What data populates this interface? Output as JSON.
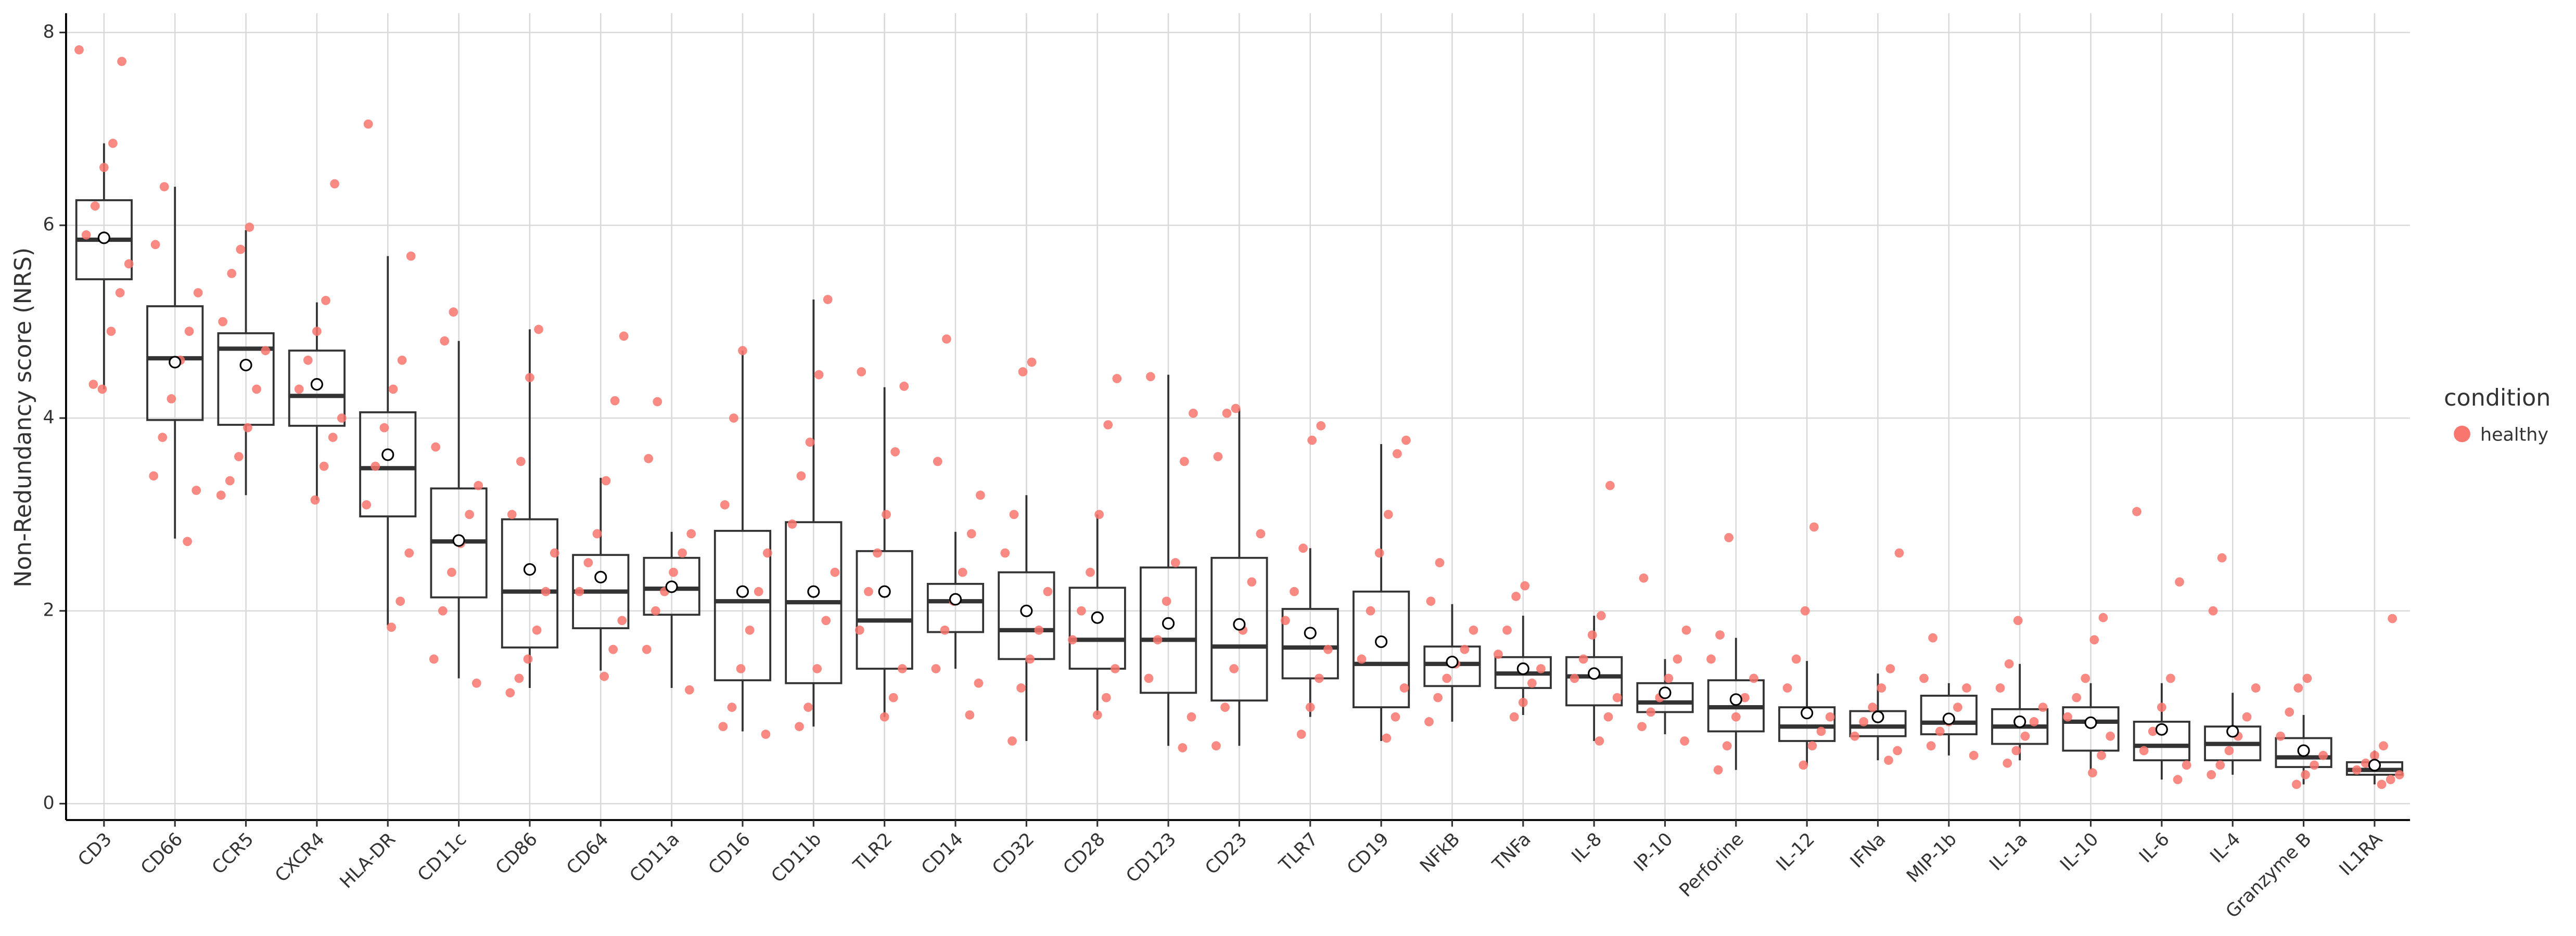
{
  "chart_data": {
    "type": "box",
    "y_label": "Non-Redundancy score (NRS)",
    "categories": [
      "CD3",
      "CD66",
      "CCR5",
      "CXCR4",
      "HLA-DR",
      "CD11c",
      "CD86",
      "CD64",
      "CD11a",
      "CD16",
      "CD11b",
      "TLR2",
      "CD14",
      "CD32",
      "CD28",
      "CD123",
      "CD23",
      "TLR7",
      "CD19",
      "NFkB",
      "TNFa",
      "IL-8",
      "IP-10",
      "Perforine",
      "IL-12",
      "IFNa",
      "MIP-1b",
      "IL-1a",
      "IL-10",
      "IL-6",
      "IL-4",
      "Granzyme B",
      "IL1RA"
    ],
    "series": [
      {
        "name": "healthy",
        "color": "#f8766d",
        "low": [
          4.3,
          2.75,
          3.2,
          3.15,
          1.85,
          1.3,
          1.2,
          1.38,
          1.2,
          0.75,
          0.8,
          0.9,
          1.4,
          0.65,
          0.92,
          0.6,
          0.6,
          0.9,
          0.65,
          0.85,
          0.92,
          0.65,
          0.72,
          0.35,
          0.4,
          0.45,
          0.5,
          0.45,
          0.35,
          0.25,
          0.3,
          0.2,
          0.2
        ],
        "q1": [
          5.44,
          3.98,
          3.93,
          3.92,
          2.98,
          2.14,
          1.62,
          1.82,
          1.96,
          1.28,
          1.25,
          1.4,
          1.78,
          1.5,
          1.4,
          1.15,
          1.07,
          1.3,
          1.0,
          1.22,
          1.2,
          1.02,
          0.95,
          0.75,
          0.65,
          0.7,
          0.72,
          0.62,
          0.55,
          0.45,
          0.45,
          0.38,
          0.3
        ],
        "median": [
          5.85,
          4.62,
          4.72,
          4.23,
          3.48,
          2.72,
          2.2,
          2.2,
          2.23,
          2.1,
          2.09,
          1.9,
          2.1,
          1.8,
          1.7,
          1.7,
          1.63,
          1.62,
          1.45,
          1.45,
          1.35,
          1.32,
          1.05,
          1.0,
          0.8,
          0.8,
          0.84,
          0.8,
          0.85,
          0.6,
          0.62,
          0.48,
          0.35
        ],
        "q3": [
          6.26,
          5.16,
          4.88,
          4.7,
          4.06,
          3.27,
          2.95,
          2.58,
          2.55,
          2.83,
          2.92,
          2.62,
          2.28,
          2.4,
          2.24,
          2.45,
          2.55,
          2.02,
          2.2,
          1.63,
          1.52,
          1.52,
          1.25,
          1.28,
          1.0,
          0.96,
          1.12,
          0.98,
          1.0,
          0.85,
          0.8,
          0.68,
          0.43
        ],
        "high": [
          6.85,
          6.4,
          5.95,
          5.2,
          5.68,
          4.8,
          4.92,
          3.38,
          2.82,
          4.7,
          5.23,
          4.32,
          2.82,
          3.2,
          3.0,
          4.45,
          4.1,
          2.65,
          3.73,
          2.07,
          1.95,
          1.95,
          1.5,
          1.72,
          1.48,
          1.35,
          1.25,
          1.45,
          1.25,
          1.25,
          1.15,
          0.92,
          0.55
        ],
        "mean": [
          5.87,
          4.58,
          4.55,
          4.35,
          3.62,
          2.73,
          2.43,
          2.35,
          2.25,
          2.2,
          2.2,
          2.2,
          2.12,
          2.0,
          1.93,
          1.87,
          1.86,
          1.77,
          1.68,
          1.47,
          1.4,
          1.35,
          1.15,
          1.08,
          0.94,
          0.9,
          0.88,
          0.85,
          0.84,
          0.77,
          0.75,
          0.55,
          0.4
        ],
        "points": [
          [
            7.82,
            7.7,
            6.85,
            6.6,
            6.2,
            5.9,
            5.6,
            5.3,
            4.9,
            4.3,
            4.35
          ],
          [
            6.4,
            5.8,
            5.3,
            4.9,
            4.6,
            4.2,
            3.8,
            3.4,
            3.25,
            2.72
          ],
          [
            5.98,
            5.75,
            5.5,
            5.0,
            4.7,
            4.3,
            3.9,
            3.6,
            3.35,
            3.2
          ],
          [
            6.43,
            5.22,
            4.9,
            4.6,
            4.3,
            4.0,
            3.8,
            3.5,
            3.15
          ],
          [
            7.05,
            5.68,
            4.6,
            4.3,
            3.9,
            3.5,
            3.1,
            2.6,
            2.1,
            1.83
          ],
          [
            5.1,
            4.8,
            3.7,
            3.3,
            3.0,
            2.7,
            2.4,
            2.0,
            1.5,
            1.25
          ],
          [
            4.92,
            4.42,
            3.55,
            3.0,
            2.6,
            2.2,
            1.8,
            1.5,
            1.3,
            1.15
          ],
          [
            4.85,
            4.18,
            3.35,
            2.8,
            2.5,
            2.2,
            1.9,
            1.6,
            1.32
          ],
          [
            4.17,
            3.58,
            2.8,
            2.6,
            2.4,
            2.2,
            2.0,
            1.6,
            1.18
          ],
          [
            4.7,
            4.0,
            3.1,
            2.6,
            2.2,
            1.8,
            1.4,
            1.0,
            0.8,
            0.72
          ],
          [
            5.23,
            4.45,
            3.75,
            3.4,
            2.9,
            2.4,
            1.9,
            1.4,
            1.0,
            0.8
          ],
          [
            4.48,
            4.33,
            3.65,
            3.0,
            2.6,
            2.2,
            1.8,
            1.4,
            1.1,
            0.9
          ],
          [
            4.82,
            3.55,
            3.2,
            2.8,
            2.4,
            2.1,
            1.8,
            1.4,
            1.25,
            0.92
          ],
          [
            4.58,
            4.48,
            3.0,
            2.6,
            2.2,
            1.8,
            1.5,
            1.2,
            0.65
          ],
          [
            4.41,
            3.93,
            3.0,
            2.4,
            2.0,
            1.7,
            1.4,
            1.1,
            0.92
          ],
          [
            4.43,
            4.05,
            3.55,
            2.5,
            2.1,
            1.7,
            1.3,
            0.9,
            0.58
          ],
          [
            4.1,
            4.05,
            3.6,
            2.8,
            2.3,
            1.8,
            1.4,
            1.0,
            0.6
          ],
          [
            3.92,
            3.77,
            2.65,
            2.2,
            1.9,
            1.6,
            1.3,
            1.0,
            0.72
          ],
          [
            3.77,
            3.63,
            3.0,
            2.6,
            2.0,
            1.5,
            1.2,
            0.9,
            0.68
          ],
          [
            2.5,
            2.1,
            1.8,
            1.6,
            1.45,
            1.3,
            1.1,
            0.85
          ],
          [
            2.26,
            2.15,
            1.8,
            1.55,
            1.4,
            1.25,
            1.05,
            0.9
          ],
          [
            3.3,
            1.95,
            1.75,
            1.5,
            1.3,
            1.1,
            0.9,
            0.65
          ],
          [
            2.34,
            1.8,
            1.5,
            1.3,
            1.1,
            0.95,
            0.8,
            0.65
          ],
          [
            2.76,
            1.75,
            1.5,
            1.3,
            1.1,
            0.9,
            0.6,
            0.35
          ],
          [
            2.87,
            2.0,
            1.5,
            1.2,
            0.9,
            0.75,
            0.6,
            0.4
          ],
          [
            2.6,
            1.4,
            1.2,
            1.0,
            0.85,
            0.7,
            0.55,
            0.45
          ],
          [
            1.72,
            1.3,
            1.2,
            1.0,
            0.85,
            0.75,
            0.6,
            0.5
          ],
          [
            1.9,
            1.45,
            1.2,
            1.0,
            0.85,
            0.7,
            0.55,
            0.42
          ],
          [
            1.93,
            1.7,
            1.3,
            1.1,
            0.9,
            0.7,
            0.5,
            0.32
          ],
          [
            3.03,
            2.3,
            1.3,
            1.0,
            0.75,
            0.55,
            0.4,
            0.25
          ],
          [
            2.55,
            2.0,
            1.2,
            0.9,
            0.7,
            0.55,
            0.4,
            0.3
          ],
          [
            1.3,
            1.2,
            0.95,
            0.7,
            0.5,
            0.4,
            0.3,
            0.2
          ],
          [
            1.92,
            0.6,
            0.5,
            0.42,
            0.35,
            0.3,
            0.25,
            0.2
          ]
        ]
      }
    ],
    "ylim": [
      -0.17,
      8.2
    ],
    "yticks": [
      0,
      2,
      4,
      6,
      8
    ],
    "grid": true,
    "legend_title": "condition",
    "legend_position": "right"
  }
}
